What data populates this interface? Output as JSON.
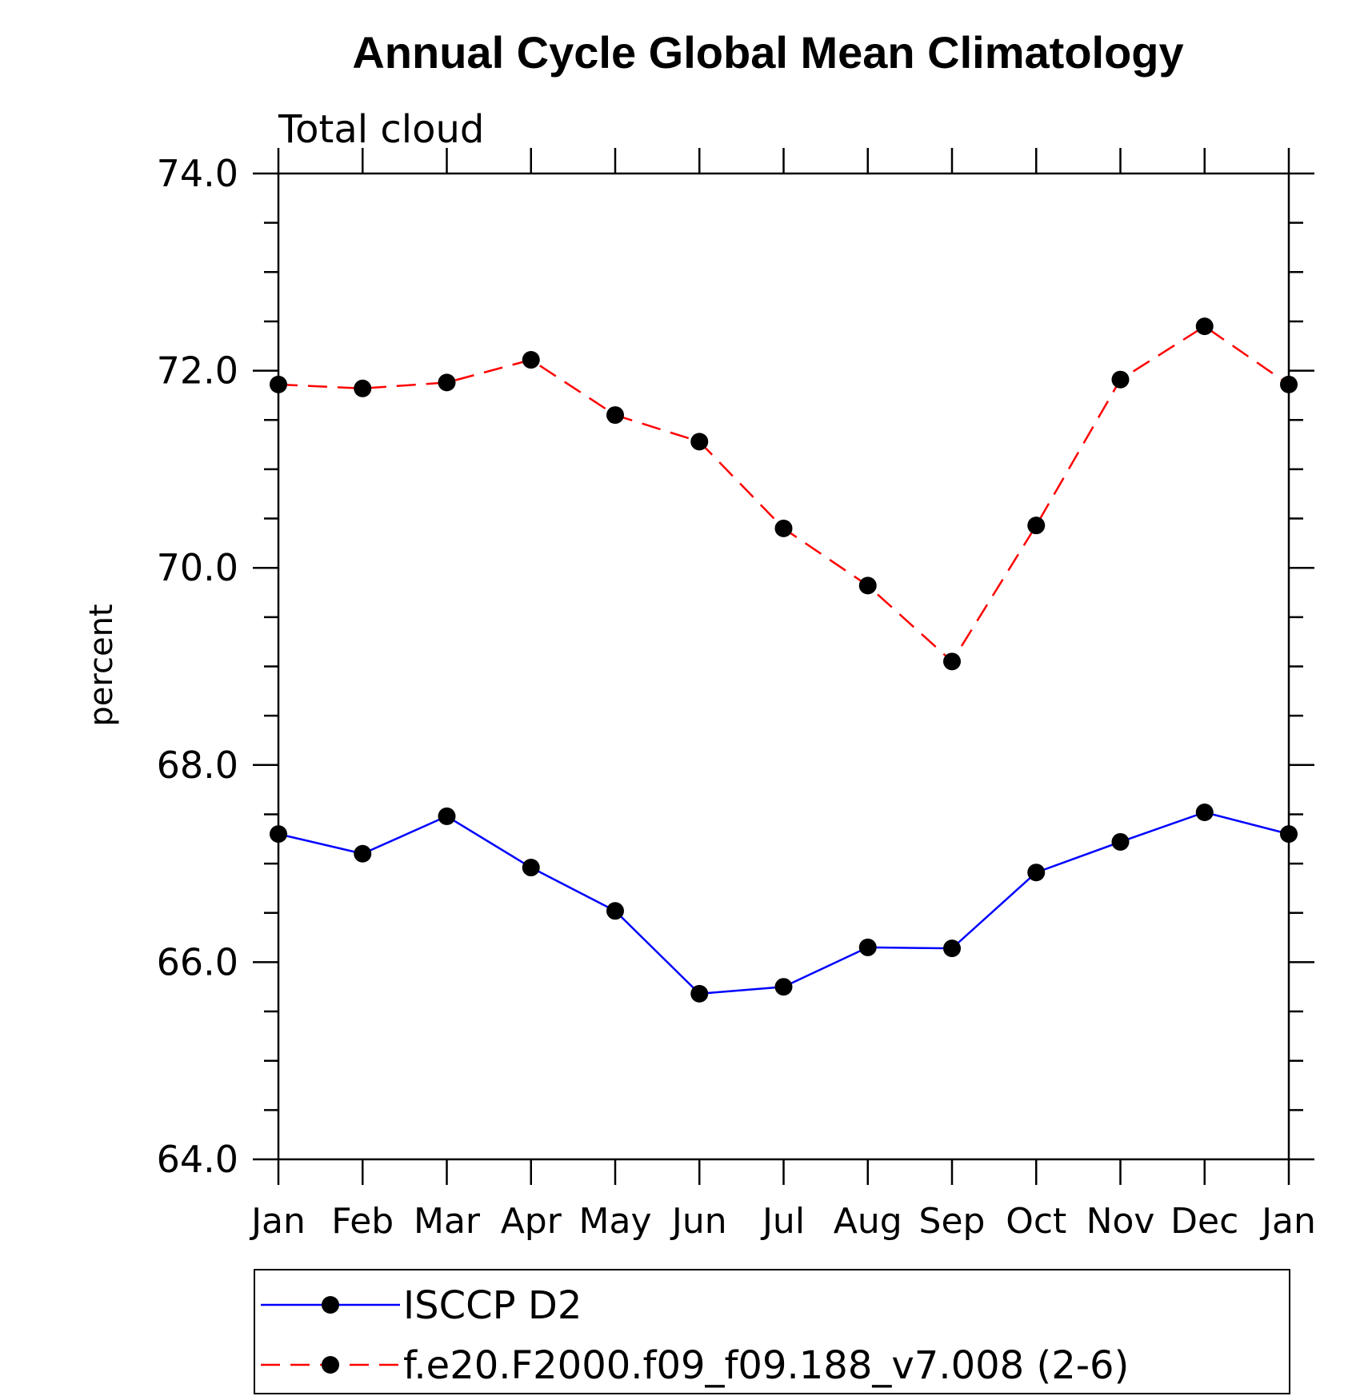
{
  "chart_data": {
    "type": "line",
    "title": "Annual Cycle Global Mean Climatology",
    "subtitle": "Total cloud",
    "ylabel": "percent",
    "xlabel": "",
    "ylim": [
      64.0,
      74.0
    ],
    "yticks": [
      "64.0",
      "66.0",
      "68.0",
      "70.0",
      "72.0",
      "74.0"
    ],
    "categories": [
      "Jan",
      "Feb",
      "Mar",
      "Apr",
      "May",
      "Jun",
      "Jul",
      "Aug",
      "Sep",
      "Oct",
      "Nov",
      "Dec",
      "Jan"
    ],
    "series": [
      {
        "name": "ISCCP D2",
        "color": "#0000ff",
        "style": "solid",
        "marker": "dot",
        "values": [
          67.3,
          67.1,
          67.48,
          66.96,
          66.52,
          65.68,
          65.75,
          66.15,
          66.14,
          66.91,
          67.22,
          67.52,
          67.3
        ]
      },
      {
        "name": "f.e20.F2000.f09_f09.188_v7.008 (2-6)",
        "color": "#ff0000",
        "style": "dashed",
        "marker": "dot",
        "values": [
          71.86,
          71.82,
          71.88,
          72.11,
          71.55,
          71.28,
          70.4,
          69.82,
          69.05,
          70.43,
          71.91,
          72.45,
          71.86
        ]
      }
    ],
    "grid": false,
    "legend_position": "bottom"
  }
}
